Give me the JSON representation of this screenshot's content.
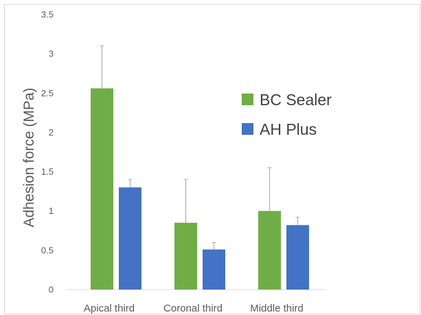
{
  "chart_data": {
    "type": "bar",
    "title": "",
    "xlabel": "",
    "ylabel": "Adhesion force (MPa)",
    "categories": [
      "Apical third",
      "Coronal third",
      "Middle third"
    ],
    "ylim": [
      0,
      3.5
    ],
    "yticks": [
      0,
      0.5,
      1,
      1.5,
      2,
      2.5,
      3,
      3.5
    ],
    "grid": false,
    "error_bars": "upper",
    "legend_position": "right",
    "series": [
      {
        "name": "BC Sealer",
        "color": "#70ad47",
        "values": [
          2.56,
          0.85,
          1.0
        ],
        "errors": [
          0.54,
          0.55,
          0.55
        ]
      },
      {
        "name": "AH Plus",
        "color": "#4472c4",
        "values": [
          1.3,
          0.51,
          0.82
        ],
        "errors": [
          0.1,
          0.09,
          0.1
        ]
      }
    ]
  }
}
